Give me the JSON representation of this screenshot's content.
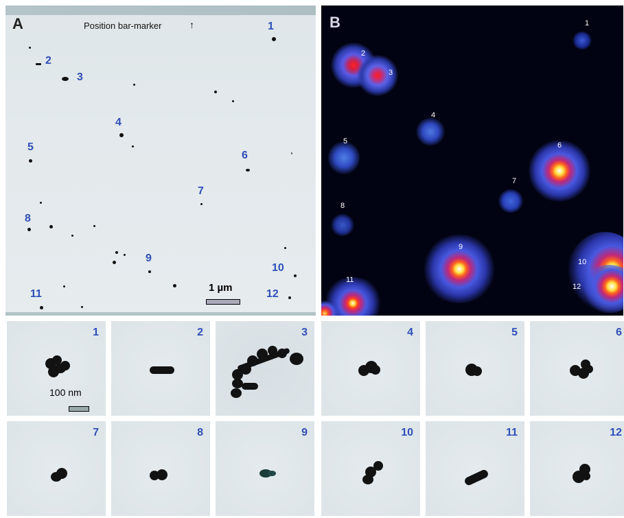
{
  "panel_a": {
    "letter": "A",
    "position_label": "Position bar-marker",
    "scale_label": "1 µm",
    "numbers": [
      "1",
      "2",
      "3",
      "4",
      "5",
      "6",
      "7",
      "8",
      "9",
      "10",
      "11",
      "12"
    ]
  },
  "panel_b": {
    "letter": "B",
    "numbers": [
      "1",
      "2",
      "3",
      "4",
      "5",
      "6",
      "7",
      "8",
      "9",
      "10",
      "11",
      "12"
    ]
  },
  "thumbnails": {
    "scale_label": "100 nm",
    "numbers": [
      "1",
      "2",
      "3",
      "4",
      "5",
      "6",
      "7",
      "8",
      "9",
      "10",
      "11",
      "12"
    ]
  }
}
